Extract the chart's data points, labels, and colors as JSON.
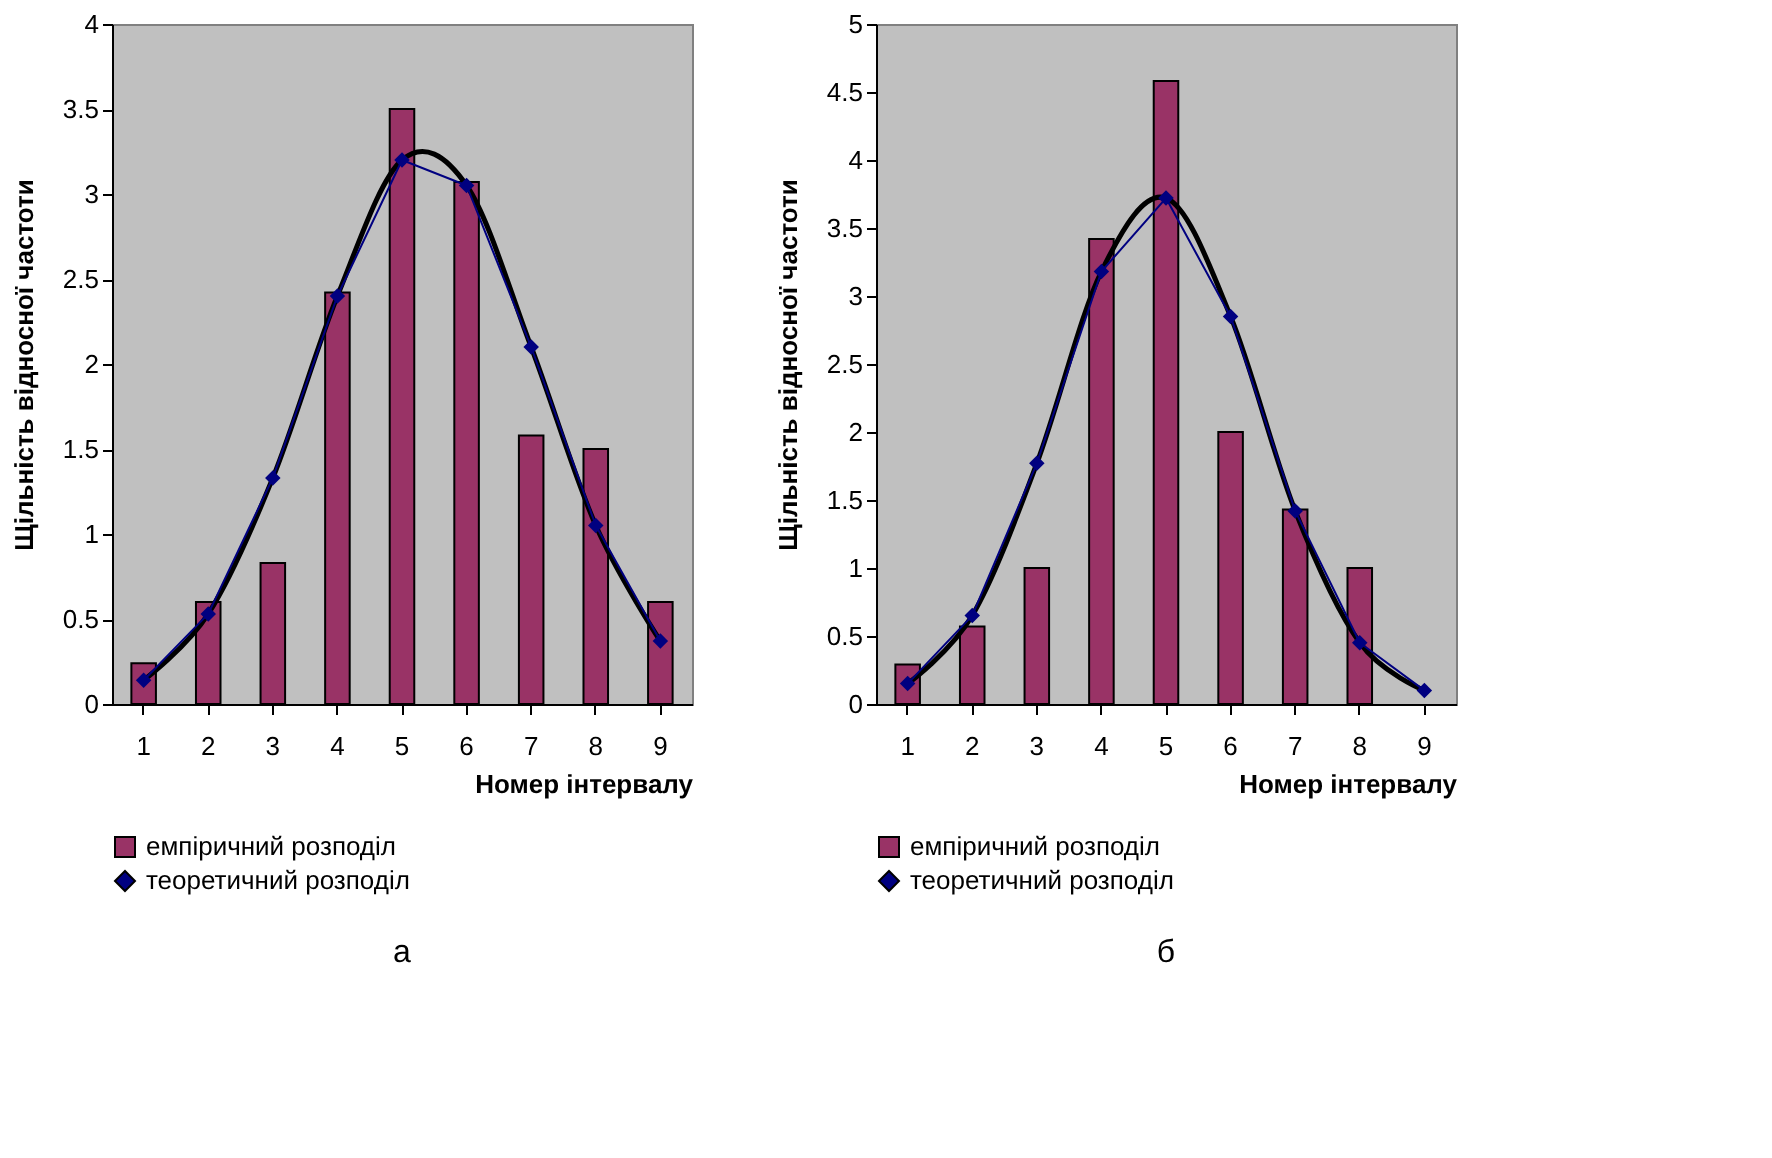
{
  "chart_data": [
    {
      "type": "bar",
      "title": "а",
      "xlabel": "Номер інтервалу",
      "ylabel": "Щільність відносної частоти",
      "categories": [
        "1",
        "2",
        "3",
        "4",
        "5",
        "6",
        "7",
        "8",
        "9"
      ],
      "series": [
        {
          "name": "емпіричний розподіл",
          "color": "#993366",
          "values": [
            0.24,
            0.6,
            0.83,
            2.42,
            3.5,
            3.07,
            1.58,
            1.5,
            0.6
          ]
        },
        {
          "name": "теоретичний розподіл",
          "type": "line",
          "color": "#000080",
          "marker": "diamond",
          "values": [
            0.14,
            0.53,
            1.33,
            2.4,
            3.2,
            3.05,
            2.1,
            1.05,
            0.37
          ]
        },
        {
          "type": "line",
          "color": "#000000",
          "marker": "none",
          "values": [
            0.14,
            0.53,
            1.33,
            2.4,
            3.2,
            3.05,
            2.1,
            1.05,
            0.37
          ]
        }
      ],
      "ylim": [
        0,
        4
      ],
      "yticks": [
        0,
        0.5,
        1,
        1.5,
        2,
        2.5,
        3,
        3.5,
        4
      ],
      "grid": false,
      "legend": "bottom"
    },
    {
      "type": "bar",
      "title": "б",
      "xlabel": "Номер інтервалу",
      "ylabel": "Щільність відносної частоти",
      "categories": [
        "1",
        "2",
        "3",
        "4",
        "5",
        "6",
        "7",
        "8",
        "9"
      ],
      "series": [
        {
          "name": "емпіричний розподіл",
          "color": "#993366",
          "values": [
            0.29,
            0.57,
            1.0,
            3.42,
            4.58,
            2.0,
            1.43,
            1.0,
            null
          ]
        },
        {
          "name": "теоретичний розподіл",
          "type": "line",
          "color": "#000080",
          "marker": "diamond",
          "values": [
            0.15,
            0.65,
            1.77,
            3.18,
            3.72,
            2.85,
            1.42,
            0.45,
            0.1
          ]
        },
        {
          "type": "line",
          "color": "#000000",
          "marker": "none",
          "values": [
            0.15,
            0.65,
            1.77,
            3.18,
            3.72,
            2.85,
            1.42,
            0.45,
            0.1
          ]
        }
      ],
      "ylim": [
        0,
        5
      ],
      "yticks": [
        0,
        0.5,
        1,
        1.5,
        2,
        2.5,
        3,
        3.5,
        4,
        4.5,
        5
      ],
      "grid": false,
      "legend": "bottom"
    }
  ]
}
